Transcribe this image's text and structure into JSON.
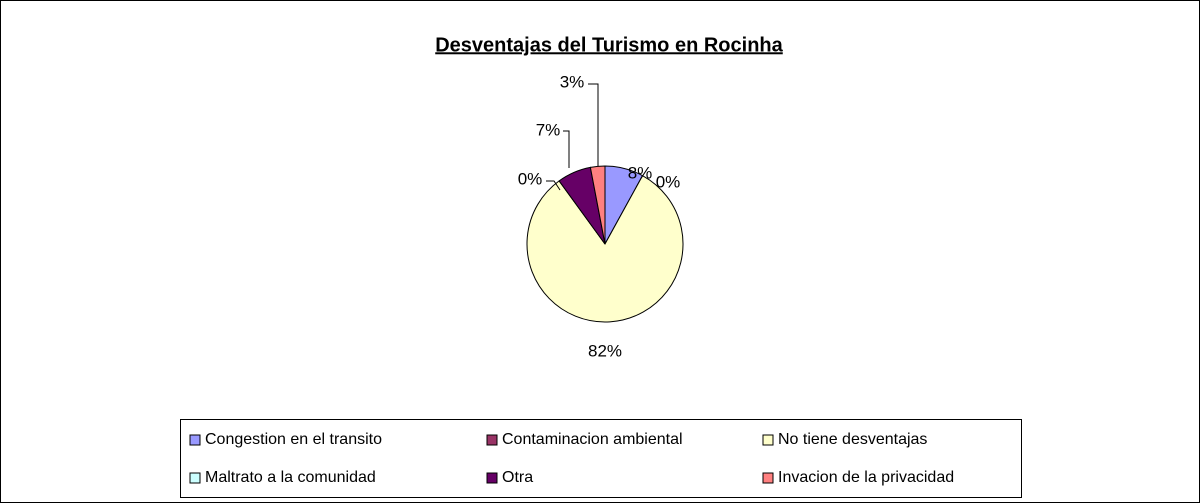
{
  "chart_data": {
    "type": "pie",
    "title": "Desventajas del Turismo en Rocinha",
    "categories": [
      "Congestion en el transito",
      "Contaminacion ambiental",
      "No tiene desventajas",
      "Maltrato a la comunidad",
      "Otra",
      "Invacion de la privacidad"
    ],
    "values": [
      8,
      0,
      82,
      0,
      7,
      3
    ],
    "value_labels": [
      "8%",
      "0%",
      "82%",
      "0%",
      "7%",
      "3%"
    ],
    "colors": [
      "#9999ff",
      "#993366",
      "#ffffcc",
      "#ccffff",
      "#660066",
      "#ff8080"
    ],
    "legend": "bottom"
  }
}
